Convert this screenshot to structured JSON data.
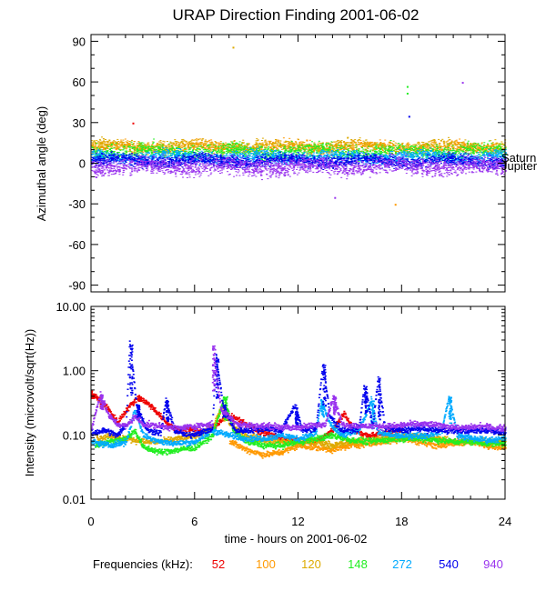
{
  "chart_data": {
    "title": "URAP Direction Finding  2001-06-02",
    "type": "scatter",
    "x": {
      "label": "time - hours on 2001-06-02",
      "range": [
        0,
        24
      ],
      "ticks": [
        0,
        6,
        12,
        18,
        24
      ],
      "tick_labels": [
        "0",
        "6",
        "12",
        "18",
        "24"
      ]
    },
    "panels": [
      {
        "name": "azimuth",
        "ylabel": "Azimuthal angle (deg)",
        "ylim": [
          -95,
          95
        ],
        "yticks": [
          90,
          60,
          30,
          0,
          -30,
          -60,
          -90
        ],
        "ytick_labels": [
          "90",
          "60",
          "30",
          "0",
          "-30",
          "-60",
          "-90"
        ],
        "markers": [
          {
            "label": "Saturn",
            "value": 5
          },
          {
            "label": "Jupiter",
            "value": -1
          }
        ],
        "series": [
          {
            "freq": 100,
            "base": 12,
            "spread": 4,
            "density": 55
          },
          {
            "freq": 120,
            "base": 13,
            "spread": 4,
            "density": 55
          },
          {
            "freq": 148,
            "base": 9,
            "spread": 5,
            "density": 70
          },
          {
            "freq": 272,
            "base": 5,
            "spread": 4,
            "density": 80
          },
          {
            "freq": 540,
            "base": 2,
            "spread": 4,
            "density": 90
          },
          {
            "freq": 940,
            "base": -2,
            "spread": 6,
            "density": 90
          }
        ],
        "outliers": [
          {
            "freq": 52,
            "x": 2.4,
            "y": 30
          },
          {
            "freq": 120,
            "x": 8.2,
            "y": 86
          },
          {
            "freq": 148,
            "x": 18.3,
            "y": 57
          },
          {
            "freq": 148,
            "x": 18.3,
            "y": 52
          },
          {
            "freq": 540,
            "x": 18.4,
            "y": 35
          },
          {
            "freq": 940,
            "x": 21.5,
            "y": 60
          },
          {
            "freq": 100,
            "x": 17.6,
            "y": -30
          },
          {
            "freq": 940,
            "x": 14.1,
            "y": -25
          }
        ]
      },
      {
        "name": "intensity",
        "ylabel": "Intensity (microvolt/sqrt(Hz))",
        "scale": "log",
        "ylim": [
          0.01,
          10.0
        ],
        "yticks": [
          10.0,
          1.0,
          0.1,
          0.01
        ],
        "ytick_labels": [
          "10.00",
          "1.00",
          "0.10",
          "0.01"
        ],
        "series": [
          {
            "freq": 52,
            "points": [
              [
                0,
                0.45
              ],
              [
                0.5,
                0.35
              ],
              [
                1,
                0.25
              ],
              [
                1.5,
                0.16
              ],
              [
                2,
                0.25
              ],
              [
                2.7,
                0.4
              ],
              [
                3.5,
                0.28
              ],
              [
                4.3,
                0.16
              ],
              [
                5,
                0.12
              ],
              [
                5.8,
                0.13
              ],
              [
                6.5,
                0.11
              ],
              [
                7,
                0.13
              ],
              [
                7.8,
                0.2
              ],
              [
                8.5,
                0.18
              ],
              [
                9.5,
                0.12
              ],
              [
                11,
                0.09
              ],
              [
                12,
                0.08
              ],
              [
                13,
                0.08
              ],
              [
                14,
                0.12
              ],
              [
                14.6,
                0.22
              ],
              [
                15.2,
                0.12
              ],
              [
                16,
                0.1
              ],
              [
                17,
                0.11
              ],
              [
                18,
                0.12
              ]
            ]
          },
          {
            "freq": 100,
            "points": [
              [
                8,
                0.08
              ],
              [
                9,
                0.06
              ],
              [
                10,
                0.05
              ],
              [
                11,
                0.055
              ],
              [
                12,
                0.07
              ],
              [
                13,
                0.065
              ],
              [
                14,
                0.06
              ],
              [
                15,
                0.07
              ],
              [
                16,
                0.075
              ],
              [
                17,
                0.08
              ],
              [
                18,
                0.09
              ],
              [
                19,
                0.08
              ],
              [
                20,
                0.07
              ],
              [
                21,
                0.075
              ],
              [
                22,
                0.08
              ],
              [
                23,
                0.07
              ],
              [
                24,
                0.065
              ]
            ]
          },
          {
            "freq": 120,
            "points": [
              [
                0.3,
                0.09
              ],
              [
                1,
                0.1
              ],
              [
                2,
                0.09
              ],
              [
                3,
                0.08
              ],
              [
                4,
                0.08
              ],
              [
                5,
                0.09
              ],
              [
                6,
                0.1
              ],
              [
                7,
                0.13
              ],
              [
                7.6,
                0.3
              ],
              [
                8,
                0.15
              ],
              [
                9,
                0.1
              ],
              [
                10,
                0.085
              ],
              [
                11,
                0.08
              ],
              [
                12,
                0.075
              ],
              [
                13,
                0.08
              ],
              [
                14,
                0.07
              ],
              [
                15,
                0.08
              ],
              [
                16,
                0.085
              ],
              [
                17,
                0.09
              ],
              [
                18,
                0.1
              ],
              [
                19,
                0.1
              ],
              [
                20,
                0.09
              ],
              [
                21,
                0.08
              ],
              [
                22,
                0.085
              ],
              [
                23,
                0.08
              ],
              [
                24,
                0.08
              ]
            ]
          },
          {
            "freq": 148,
            "points": [
              [
                0.2,
                0.07
              ],
              [
                1,
                0.08
              ],
              [
                2,
                0.09
              ],
              [
                2.5,
                0.12
              ],
              [
                3,
                0.065
              ],
              [
                3.5,
                0.06
              ],
              [
                4,
                0.055
              ],
              [
                5,
                0.06
              ],
              [
                6,
                0.065
              ],
              [
                7,
                0.1
              ],
              [
                7.7,
                0.4
              ],
              [
                8.2,
                0.12
              ],
              [
                9,
                0.08
              ],
              [
                10,
                0.07
              ],
              [
                11,
                0.07
              ],
              [
                12,
                0.08
              ],
              [
                13,
                0.09
              ],
              [
                14,
                0.1
              ],
              [
                15,
                0.085
              ],
              [
                16,
                0.08
              ],
              [
                17,
                0.085
              ],
              [
                18,
                0.09
              ],
              [
                19,
                0.09
              ],
              [
                20,
                0.085
              ],
              [
                21,
                0.08
              ],
              [
                22,
                0.08
              ],
              [
                23,
                0.075
              ],
              [
                24,
                0.075
              ]
            ]
          },
          {
            "freq": 272,
            "points": [
              [
                0,
                0.08
              ],
              [
                1,
                0.07
              ],
              [
                2,
                0.08
              ],
              [
                2.5,
                0.25
              ],
              [
                3,
                0.1
              ],
              [
                4,
                0.08
              ],
              [
                5,
                0.075
              ],
              [
                6,
                0.08
              ],
              [
                7,
                0.12
              ],
              [
                8,
                0.1
              ],
              [
                9,
                0.09
              ],
              [
                10,
                0.09
              ],
              [
                11,
                0.1
              ],
              [
                12,
                0.09
              ],
              [
                13,
                0.11
              ],
              [
                13.3,
                0.35
              ],
              [
                13.8,
                0.15
              ],
              [
                14.5,
                0.1
              ],
              [
                15.5,
                0.12
              ],
              [
                16.2,
                0.35
              ],
              [
                16.6,
                0.11
              ],
              [
                17.5,
                0.1
              ],
              [
                18.5,
                0.1
              ],
              [
                19.5,
                0.1
              ],
              [
                20.3,
                0.12
              ],
              [
                20.7,
                0.4
              ],
              [
                21.2,
                0.1
              ],
              [
                22,
                0.09
              ],
              [
                23,
                0.085
              ],
              [
                24,
                0.09
              ]
            ]
          },
          {
            "freq": 540,
            "points": [
              [
                0,
                0.11
              ],
              [
                0.8,
                0.12
              ],
              [
                1.5,
                0.1
              ],
              [
                2,
                0.15
              ],
              [
                2.2,
                3.0
              ],
              [
                2.6,
                0.3
              ],
              [
                3.2,
                0.12
              ],
              [
                4,
                0.11
              ],
              [
                4.3,
                0.35
              ],
              [
                4.8,
                0.12
              ],
              [
                5.5,
                0.1
              ],
              [
                6.2,
                0.11
              ],
              [
                7,
                0.13
              ],
              [
                7.2,
                1.8
              ],
              [
                7.6,
                0.3
              ],
              [
                8.3,
                0.12
              ],
              [
                9,
                0.12
              ],
              [
                10,
                0.13
              ],
              [
                11,
                0.12
              ],
              [
                11.8,
                0.3
              ],
              [
                12.2,
                0.12
              ],
              [
                13,
                0.13
              ],
              [
                13.4,
                1.3
              ],
              [
                13.8,
                0.2
              ],
              [
                14.5,
                0.12
              ],
              [
                15.5,
                0.13
              ],
              [
                15.8,
                0.6
              ],
              [
                16.3,
                0.14
              ],
              [
                16.6,
                0.8
              ],
              [
                17,
                0.13
              ],
              [
                18,
                0.12
              ],
              [
                19,
                0.13
              ],
              [
                20,
                0.12
              ],
              [
                21,
                0.12
              ],
              [
                22,
                0.12
              ],
              [
                23,
                0.12
              ],
              [
                24,
                0.11
              ]
            ]
          },
          {
            "freq": 940,
            "points": [
              [
                0,
                0.13
              ],
              [
                0.5,
                0.45
              ],
              [
                1,
                0.2
              ],
              [
                1.5,
                0.15
              ],
              [
                2,
                0.14
              ],
              [
                2.5,
                0.2
              ],
              [
                3,
                0.15
              ],
              [
                4,
                0.14
              ],
              [
                5,
                0.13
              ],
              [
                6,
                0.14
              ],
              [
                7,
                0.15
              ],
              [
                7,
                2.5
              ],
              [
                7.5,
                0.25
              ],
              [
                8.5,
                0.15
              ],
              [
                9.5,
                0.14
              ],
              [
                10.5,
                0.14
              ],
              [
                11.5,
                0.13
              ],
              [
                12.5,
                0.14
              ],
              [
                13.5,
                0.15
              ],
              [
                14,
                0.4
              ],
              [
                14.5,
                0.15
              ],
              [
                15.5,
                0.14
              ],
              [
                16.5,
                0.14
              ],
              [
                17.5,
                0.14
              ],
              [
                18.5,
                0.15
              ],
              [
                19.5,
                0.15
              ],
              [
                20.5,
                0.14
              ],
              [
                21.5,
                0.13
              ],
              [
                22.5,
                0.14
              ],
              [
                23.5,
                0.13
              ],
              [
                24,
                0.13
              ]
            ]
          }
        ]
      }
    ],
    "legend": {
      "label": "Frequencies (kHz):",
      "position": "bottom",
      "entries": [
        {
          "freq": 52,
          "label": "52",
          "color": "#ee0000"
        },
        {
          "freq": 100,
          "label": "100",
          "color": "#ff9900"
        },
        {
          "freq": 120,
          "label": "120",
          "color": "#ddaa00"
        },
        {
          "freq": 148,
          "label": "148",
          "color": "#22ee22"
        },
        {
          "freq": 272,
          "label": "272",
          "color": "#00aaff"
        },
        {
          "freq": 540,
          "label": "540",
          "color": "#0000ee"
        },
        {
          "freq": 940,
          "label": "940",
          "color": "#9933ee"
        }
      ]
    }
  }
}
